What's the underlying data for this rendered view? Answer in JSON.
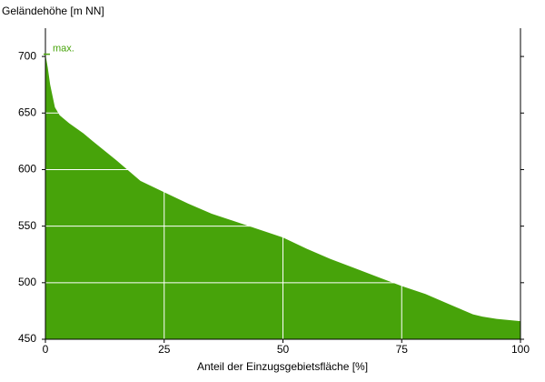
{
  "chart_data": {
    "type": "area",
    "y_label": "Geländehöhe [m NN]",
    "x_label": "Anteil der Einzugsgebietsfläche [%]",
    "annotation": "max.",
    "x": [
      0,
      0.5,
      1,
      2,
      3,
      5,
      8,
      10,
      15,
      20,
      25,
      30,
      35,
      40,
      45,
      50,
      55,
      60,
      65,
      70,
      75,
      80,
      85,
      90,
      92,
      95,
      100
    ],
    "values": [
      702,
      690,
      675,
      655,
      648,
      641,
      632,
      625,
      608,
      590,
      580,
      570,
      561,
      554,
      547,
      540,
      530,
      521,
      513,
      505,
      497,
      490,
      481,
      472,
      470,
      468,
      466
    ],
    "color": "#47a30a",
    "xlim": [
      0,
      100
    ],
    "xticks": [
      0,
      25,
      50,
      75,
      100
    ],
    "ylim": [
      450,
      725
    ],
    "yticks": [
      450,
      500,
      550,
      600,
      650,
      700
    ],
    "grid": true
  }
}
